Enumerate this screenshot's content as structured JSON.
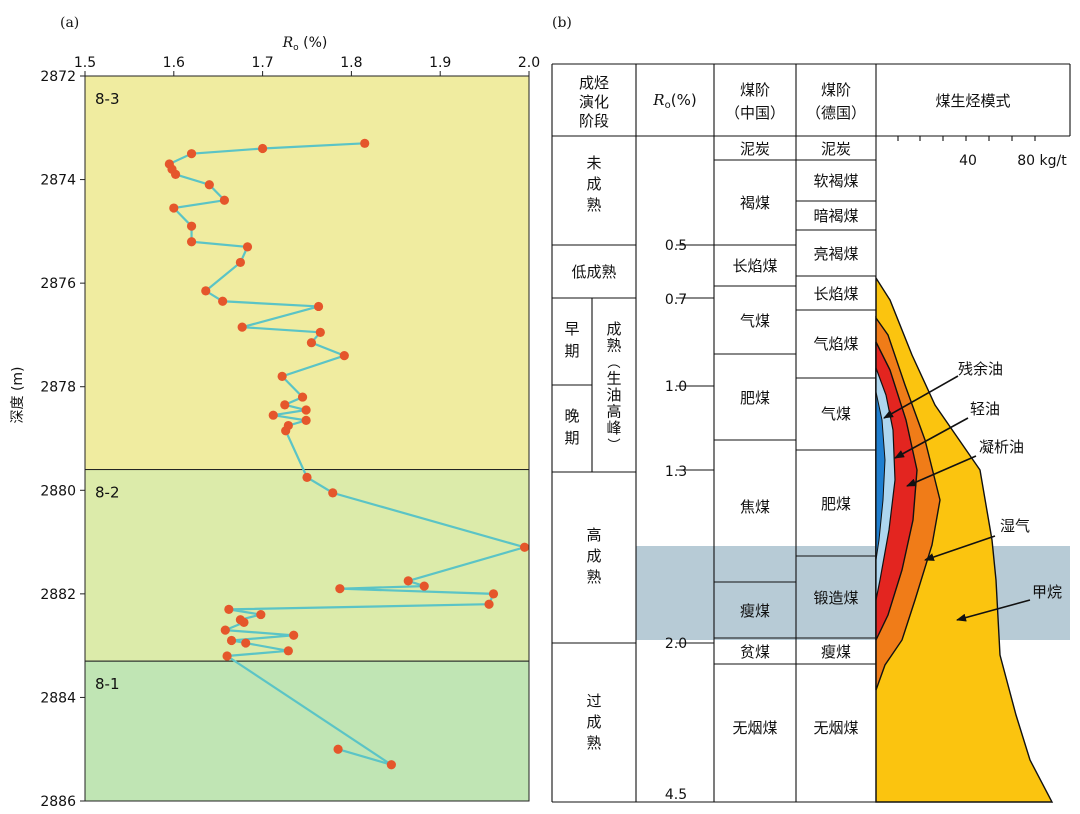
{
  "panel_a_tag": "(a)",
  "panel_b_tag": "(b)",
  "chart_data": [
    {
      "type": "line",
      "title": "",
      "xlabel_symbol": "R",
      "xlabel_sub": "o",
      "xlabel_unit": " (%)",
      "ylabel": "深度 (m)",
      "xlim": [
        1.5,
        2.0
      ],
      "ylim": [
        2872,
        2886
      ],
      "xticks": [
        "1.5",
        "1.6",
        "1.7",
        "1.8",
        "1.9",
        "2.0"
      ],
      "yticks": [
        "2872",
        "2874",
        "2876",
        "2878",
        "2880",
        "2882",
        "2884",
        "2886"
      ],
      "zones": [
        {
          "label": "8-3",
          "from": 2872,
          "to": 2879.6,
          "color": "#f0eca0"
        },
        {
          "label": "8-2",
          "from": 2879.6,
          "to": 2883.3,
          "color": "#dcebaa"
        },
        {
          "label": "8-1",
          "from": 2883.3,
          "to": 2886,
          "color": "#c0e5b4"
        }
      ],
      "series": [
        {
          "name": "Ro",
          "line_color": "#5bc4c6",
          "point_color": "#e5562b",
          "x": [
            1.815,
            1.7,
            1.62,
            1.595,
            1.598,
            1.602,
            1.64,
            1.657,
            1.6,
            1.62,
            1.62,
            1.683,
            1.675,
            1.636,
            1.655,
            1.763,
            1.677,
            1.765,
            1.755,
            1.792,
            1.722,
            1.745,
            1.725,
            1.749,
            1.712,
            1.749,
            1.729,
            1.726,
            1.75,
            1.779,
            1.995,
            1.864,
            1.882,
            1.787,
            1.96,
            1.955,
            1.662,
            1.698,
            1.675,
            1.679,
            1.658,
            1.735,
            1.665,
            1.681,
            1.729,
            1.66,
            1.845,
            1.785
          ],
          "y": [
            2873.3,
            2873.4,
            2873.5,
            2873.7,
            2873.8,
            2873.9,
            2874.1,
            2874.4,
            2874.55,
            2874.9,
            2875.2,
            2875.3,
            2875.6,
            2876.15,
            2876.35,
            2876.45,
            2876.85,
            2876.95,
            2877.15,
            2877.4,
            2877.8,
            2878.2,
            2878.35,
            2878.45,
            2878.55,
            2878.65,
            2878.75,
            2878.85,
            2879.75,
            2880.05,
            2881.1,
            2881.75,
            2881.85,
            2881.9,
            2882.0,
            2882.2,
            2882.3,
            2882.4,
            2882.5,
            2882.55,
            2882.7,
            2882.8,
            2882.9,
            2882.95,
            2883.1,
            2883.2,
            2885.3,
            2885.0
          ]
        }
      ]
    },
    {
      "type": "table",
      "title": "煤生烃模式",
      "headers": {
        "stage": [
          "成烃",
          "演化",
          "阶段"
        ],
        "ro_symbol": "R",
        "ro_sub": "o",
        "ro_unit": "(%)",
        "rank_cn": [
          "煤阶",
          "（中国）"
        ],
        "rank_de": [
          "煤阶",
          "（德国）"
        ],
        "model": "煤生烃模式"
      },
      "ro_ticks": [
        "0.5",
        "0.7",
        "1.0",
        "1.3",
        "2.0",
        "4.5"
      ],
      "yield_ticks": [
        "40",
        "80 kg/t"
      ],
      "stages": [
        {
          "label": "未成熟"
        },
        {
          "label": "低成熟"
        },
        {
          "label": "早期"
        },
        {
          "label": "晚期"
        },
        {
          "label": "成熟(生油高峰)"
        },
        {
          "label": "高成熟"
        },
        {
          "label": "过成熟"
        }
      ],
      "rank_china": [
        "泥炭",
        "褐煤",
        "长焰煤",
        "气煤",
        "肥煤",
        "焦煤",
        "瘦煤",
        "贫煤",
        "无烟煤"
      ],
      "rank_germany": [
        "泥炭",
        "软褐煤",
        "暗褐煤",
        "亮褐煤",
        "长焰煤",
        "气焰煤",
        "气煤",
        "肥煤",
        "锻造煤",
        "瘦煤",
        "无烟煤"
      ],
      "products": [
        {
          "name": "残余油",
          "color": "#1f7fd0"
        },
        {
          "name": "轻油",
          "color": "#aed6ef"
        },
        {
          "name": "凝析油",
          "color": "#e32520"
        },
        {
          "name": "湿气",
          "color": "#f07c18"
        },
        {
          "name": "甲烷",
          "color": "#fbc40f"
        }
      ],
      "highlight_color": "#b7cbd6"
    }
  ]
}
